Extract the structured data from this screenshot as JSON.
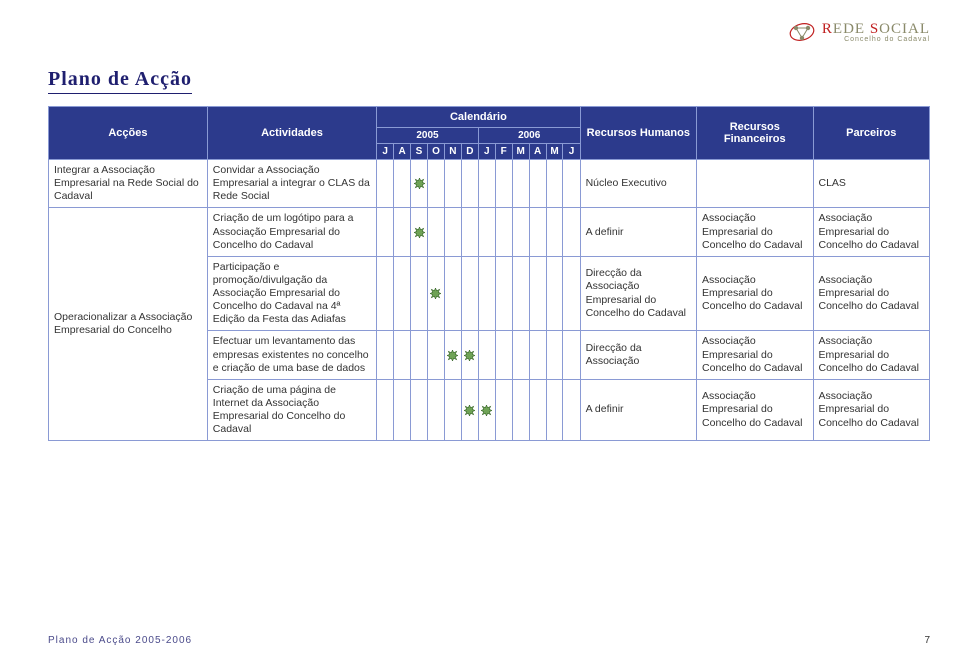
{
  "logo": {
    "brand_left": "R",
    "brand_mid": "EDE",
    "brand_right": "S",
    "brand_end": "OCIAL",
    "sub": "Concelho do Cadaval",
    "accent_color": "#c02020",
    "text_color": "#8a8a6a"
  },
  "page_title": "Plano de Acção",
  "header": {
    "accoes": "Acções",
    "atividades": "Actividades",
    "calendario": "Calendário",
    "year_2005": "2005",
    "year_2006": "2006",
    "recursos_humanos": "Recursos Humanos",
    "recursos_financeiros": "Recursos Financeiros",
    "parceiros": "Parceiros",
    "months_2005": [
      "J",
      "A",
      "S",
      "O",
      "N",
      "D"
    ],
    "months_2006": [
      "J",
      "F",
      "M",
      "A",
      "M",
      "J"
    ]
  },
  "colors": {
    "header_bg": "#2c3a8c",
    "header_fg": "#ffffff",
    "border": "#8a9ad4",
    "title_color": "#1f1f6f",
    "mark_fill": "#6fa356",
    "mark_stroke": "#2f5f20"
  },
  "rows": [
    {
      "accao": "Integrar a Associação Empresarial na Rede Social do Cadaval",
      "atividade": "Convidar a Associação Empresarial a integrar o CLAS da Rede Social",
      "marks": [
        false,
        false,
        true,
        false,
        false,
        false,
        false,
        false,
        false,
        false,
        false,
        false
      ],
      "rh": "Núcleo Executivo",
      "rf": "",
      "parceiros": "CLAS"
    },
    {
      "accao": "Operacionalizar a Associação Empresarial do Concelho",
      "accao_rowspan": 4,
      "atividade": "Criação de um logótipo para a Associação Empresarial do Concelho do Cadaval",
      "marks": [
        false,
        false,
        true,
        false,
        false,
        false,
        false,
        false,
        false,
        false,
        false,
        false
      ],
      "rh": "A definir",
      "rf": "Associação Empresarial do Concelho do Cadaval",
      "parceiros": "Associação Empresarial do Concelho do Cadaval"
    },
    {
      "atividade": "Participação e promoção/divulgação da Associação Empresarial do Concelho do Cadaval na 4ª Edição da Festa das Adiafas",
      "marks": [
        false,
        false,
        false,
        true,
        false,
        false,
        false,
        false,
        false,
        false,
        false,
        false
      ],
      "rh": "Direcção da Associação Empresarial do Concelho do Cadaval",
      "rf": "Associação Empresarial do Concelho do Cadaval",
      "parceiros": "Associação Empresarial do Concelho do Cadaval"
    },
    {
      "atividade": "Efectuar um levantamento das empresas existentes no concelho e criação de uma base de dados",
      "marks": [
        false,
        false,
        false,
        false,
        true,
        true,
        false,
        false,
        false,
        false,
        false,
        false
      ],
      "rh": "Direcção da Associação",
      "rf": "Associação Empresarial do Concelho do Cadaval",
      "parceiros": "Associação Empresarial do Concelho do Cadaval"
    },
    {
      "atividade": "Criação de uma página de Internet da Associação Empresarial do Concelho do Cadaval",
      "marks": [
        false,
        false,
        false,
        false,
        false,
        true,
        true,
        false,
        false,
        false,
        false,
        false
      ],
      "rh": "A definir",
      "rf": "Associação Empresarial do Concelho do Cadaval",
      "parceiros": "Associação Empresarial do Concelho do Cadaval"
    }
  ],
  "col_widths": {
    "accoes": 150,
    "atividades": 160,
    "month": 16,
    "rh": 110,
    "rf": 110,
    "parceiros": 110
  },
  "footer": {
    "left": "Plano de Acção 2005-2006",
    "page": "7"
  }
}
